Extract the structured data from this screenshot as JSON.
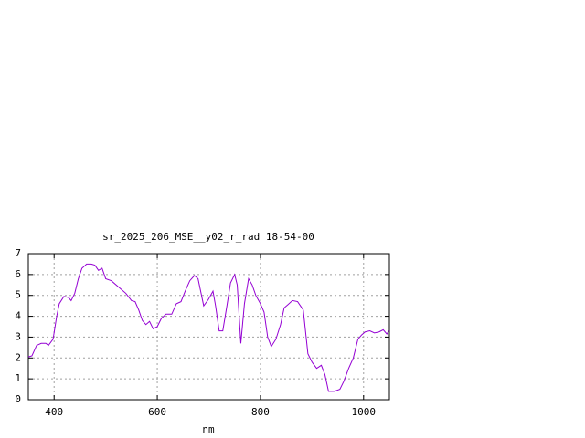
{
  "chart_data": {
    "type": "line",
    "title": "sr_2025_206_MSE__y02_r_rad 18-54-00",
    "x_label": "nm",
    "xlim": [
      350,
      1050
    ],
    "xticks": [
      400,
      600,
      800,
      1000
    ],
    "ylim": [
      0,
      7
    ],
    "yticks": [
      0,
      1,
      2,
      3,
      4,
      5,
      6,
      7
    ],
    "grid": true,
    "series": [
      {
        "color": "#9400d3",
        "x": [
          350,
          357,
          366,
          375,
          384,
          389,
          398,
          405,
          410,
          419,
          428,
          433,
          440,
          447,
          454,
          463,
          472,
          479,
          486,
          493,
          500,
          511,
          525,
          539,
          550,
          557,
          564,
          571,
          578,
          585,
          592,
          600,
          608,
          617,
          628,
          637,
          646,
          654,
          663,
          672,
          679,
          690,
          699,
          708,
          713,
          720,
          727,
          735,
          742,
          750,
          755,
          762,
          769,
          777,
          784,
          791,
          800,
          807,
          814,
          821,
          830,
          839,
          846,
          853,
          862,
          872,
          883,
          892,
          900,
          909,
          918,
          925,
          932,
          943,
          954,
          962,
          971,
          980,
          989,
          996,
          1003,
          1012,
          1021,
          1030,
          1038,
          1045,
          1049
        ],
        "values": [
          2.05,
          2.1,
          2.6,
          2.7,
          2.7,
          2.6,
          2.9,
          4.0,
          4.6,
          4.95,
          4.9,
          4.75,
          5.1,
          5.8,
          6.3,
          6.5,
          6.5,
          6.45,
          6.2,
          6.3,
          5.8,
          5.7,
          5.4,
          5.1,
          4.75,
          4.7,
          4.3,
          3.8,
          3.6,
          3.75,
          3.4,
          3.5,
          3.9,
          4.1,
          4.1,
          4.6,
          4.7,
          5.2,
          5.7,
          5.95,
          5.8,
          4.5,
          4.8,
          5.2,
          4.5,
          3.3,
          3.3,
          4.5,
          5.6,
          6.0,
          5.5,
          2.7,
          4.6,
          5.8,
          5.5,
          5.0,
          4.6,
          4.2,
          3.0,
          2.55,
          2.9,
          3.6,
          4.4,
          4.55,
          4.75,
          4.7,
          4.3,
          2.2,
          1.8,
          1.5,
          1.65,
          1.2,
          0.4,
          0.4,
          0.5,
          0.9,
          1.5,
          2.0,
          2.9,
          3.1,
          3.25,
          3.3,
          3.2,
          3.25,
          3.35,
          3.15,
          3.3
        ]
      }
    ]
  }
}
